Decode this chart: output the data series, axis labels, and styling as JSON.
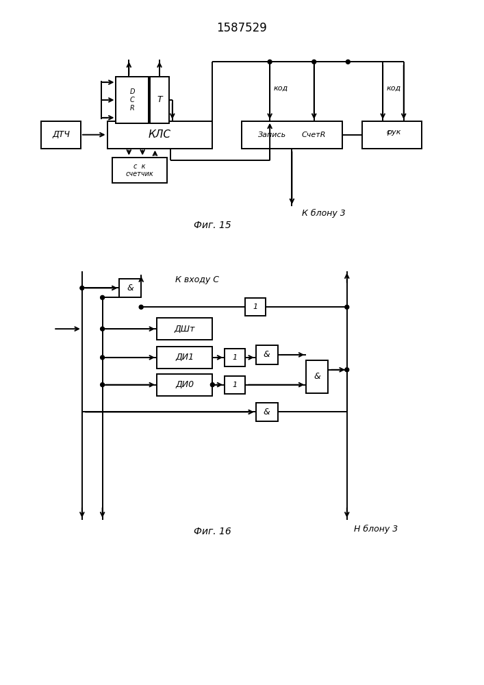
{
  "title": "1587529",
  "fig15_label": "Фиг. 15",
  "fig16_label": "Фиг. 16",
  "bg_color": "#ffffff",
  "lc": "#000000",
  "lw": 1.4
}
